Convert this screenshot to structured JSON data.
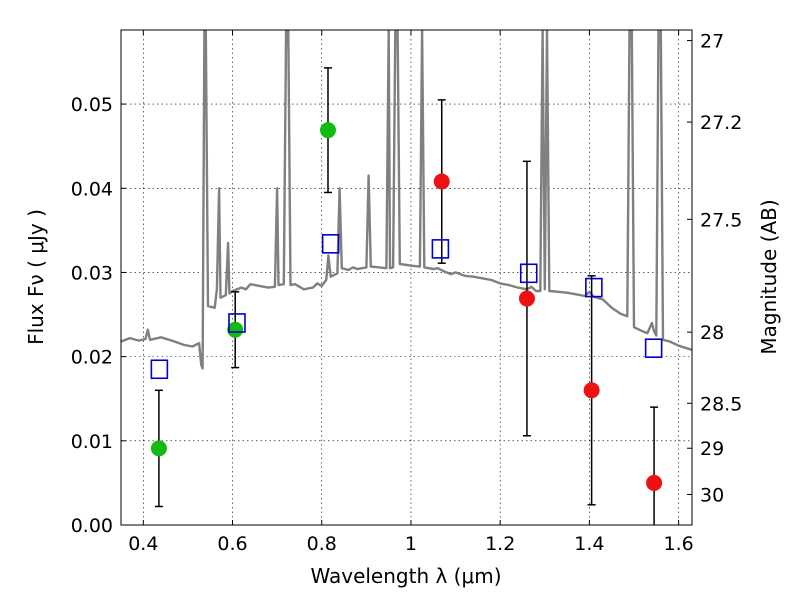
{
  "chart_data": {
    "type": "scatter",
    "xlabel": "Wavelength  λ (μm)",
    "ylabel": "Flux  Fν  ( μJy )",
    "y2label": "Magnitude (AB)",
    "xlim": [
      0.35,
      1.63
    ],
    "ylim": [
      0.0,
      0.0588
    ],
    "grid": true,
    "x_ticks": [
      0.4,
      0.6,
      0.8,
      1.0,
      1.2,
      1.4,
      1.6
    ],
    "x_tick_labels": [
      "0.4",
      "0.6",
      "0.8",
      "1",
      "1.2",
      "1.4",
      "1.6"
    ],
    "y_ticks": [
      0.0,
      0.01,
      0.02,
      0.03,
      0.04,
      0.05
    ],
    "y_tick_labels": [
      "0.00",
      "0.01",
      "0.02",
      "0.03",
      "0.04",
      "0.05"
    ],
    "magnitude_ticks": [
      {
        "mag": 27,
        "label": "27"
      },
      {
        "mag": 27.2,
        "label": "27.2"
      },
      {
        "mag": 27.5,
        "label": "27.5"
      },
      {
        "mag": 28,
        "label": "28"
      },
      {
        "mag": 28.5,
        "label": "28.5"
      },
      {
        "mag": 29,
        "label": "29"
      },
      {
        "mag": 30,
        "label": "30"
      }
    ],
    "series": [
      {
        "marker": "circle",
        "color": "#11bb11",
        "points": [
          {
            "x": 0.435,
            "y": 0.0091,
            "err": 0.0069
          },
          {
            "x": 0.606,
            "y": 0.0232,
            "err": 0.0045
          },
          {
            "x": 0.814,
            "y": 0.0469,
            "err": 0.0074
          }
        ]
      },
      {
        "marker": "circle",
        "color": "#ee1111",
        "points": [
          {
            "x": 1.069,
            "y": 0.0408,
            "err": 0.0097
          },
          {
            "x": 1.26,
            "y": 0.0269,
            "err": 0.0163
          },
          {
            "x": 1.405,
            "y": 0.016,
            "err": 0.0136
          },
          {
            "x": 1.545,
            "y": 0.005,
            "err": 0.009
          }
        ]
      },
      {
        "marker": "open-square",
        "color": "#0000cc",
        "points": [
          {
            "x": 0.436,
            "y": 0.0185
          },
          {
            "x": 0.61,
            "y": 0.024
          },
          {
            "x": 0.82,
            "y": 0.0334
          },
          {
            "x": 1.066,
            "y": 0.0328
          },
          {
            "x": 1.264,
            "y": 0.0299
          },
          {
            "x": 1.41,
            "y": 0.0282
          },
          {
            "x": 1.544,
            "y": 0.021
          }
        ]
      }
    ],
    "model_spectrum": {
      "color": "#808080",
      "points": [
        [
          0.35,
          0.0218
        ],
        [
          0.37,
          0.0222
        ],
        [
          0.39,
          0.0219
        ],
        [
          0.405,
          0.0221
        ],
        [
          0.41,
          0.0232
        ],
        [
          0.415,
          0.022
        ],
        [
          0.44,
          0.0223
        ],
        [
          0.47,
          0.0218
        ],
        [
          0.49,
          0.0214
        ],
        [
          0.51,
          0.0212
        ],
        [
          0.525,
          0.0216
        ],
        [
          0.53,
          0.019
        ],
        [
          0.533,
          0.0186
        ],
        [
          0.537,
          0.0588
        ],
        [
          0.54,
          0.0588
        ],
        [
          0.545,
          0.026
        ],
        [
          0.56,
          0.0258
        ],
        [
          0.565,
          0.028
        ],
        [
          0.57,
          0.04
        ],
        [
          0.573,
          0.027
        ],
        [
          0.585,
          0.0273
        ],
        [
          0.59,
          0.0335
        ],
        [
          0.593,
          0.0275
        ],
        [
          0.6,
          0.0278
        ],
        [
          0.62,
          0.0282
        ],
        [
          0.63,
          0.028
        ],
        [
          0.64,
          0.0286
        ],
        [
          0.66,
          0.0284
        ],
        [
          0.68,
          0.0282
        ],
        [
          0.695,
          0.0283
        ],
        [
          0.7,
          0.04
        ],
        [
          0.703,
          0.0285
        ],
        [
          0.715,
          0.0286
        ],
        [
          0.72,
          0.0588
        ],
        [
          0.725,
          0.0588
        ],
        [
          0.73,
          0.0285
        ],
        [
          0.74,
          0.0286
        ],
        [
          0.76,
          0.028
        ],
        [
          0.78,
          0.0282
        ],
        [
          0.79,
          0.0287
        ],
        [
          0.8,
          0.0284
        ],
        [
          0.81,
          0.0291
        ],
        [
          0.815,
          0.032
        ],
        [
          0.82,
          0.0295
        ],
        [
          0.835,
          0.0299
        ],
        [
          0.84,
          0.04
        ],
        [
          0.845,
          0.0305
        ],
        [
          0.86,
          0.0303
        ],
        [
          0.87,
          0.0306
        ],
        [
          0.88,
          0.0304
        ],
        [
          0.89,
          0.0305
        ],
        [
          0.9,
          0.0306
        ],
        [
          0.905,
          0.0415
        ],
        [
          0.91,
          0.0307
        ],
        [
          0.93,
          0.0306
        ],
        [
          0.945,
          0.0305
        ],
        [
          0.95,
          0.0588
        ],
        [
          0.953,
          0.0305
        ],
        [
          0.96,
          0.0306
        ],
        [
          0.965,
          0.0588
        ],
        [
          0.97,
          0.0588
        ],
        [
          0.975,
          0.031
        ],
        [
          0.99,
          0.0309
        ],
        [
          1.0,
          0.0308
        ],
        [
          1.02,
          0.0307
        ],
        [
          1.025,
          0.0588
        ],
        [
          1.03,
          0.0306
        ],
        [
          1.04,
          0.0305
        ],
        [
          1.05,
          0.0304
        ],
        [
          1.06,
          0.0305
        ],
        [
          1.075,
          0.0301
        ],
        [
          1.09,
          0.0298
        ],
        [
          1.1,
          0.03
        ],
        [
          1.12,
          0.0296
        ],
        [
          1.14,
          0.0295
        ],
        [
          1.16,
          0.0293
        ],
        [
          1.18,
          0.0291
        ],
        [
          1.2,
          0.0287
        ],
        [
          1.22,
          0.0285
        ],
        [
          1.24,
          0.0282
        ],
        [
          1.26,
          0.028
        ],
        [
          1.27,
          0.0283
        ],
        [
          1.28,
          0.0278
        ],
        [
          1.29,
          0.0278
        ],
        [
          1.295,
          0.0588
        ],
        [
          1.3,
          0.028
        ],
        [
          1.305,
          0.0588
        ],
        [
          1.31,
          0.0278
        ],
        [
          1.33,
          0.0277
        ],
        [
          1.35,
          0.0276
        ],
        [
          1.37,
          0.0274
        ],
        [
          1.39,
          0.0272
        ],
        [
          1.4,
          0.0277
        ],
        [
          1.41,
          0.0271
        ],
        [
          1.43,
          0.0268
        ],
        [
          1.45,
          0.0258
        ],
        [
          1.47,
          0.0251
        ],
        [
          1.485,
          0.0248
        ],
        [
          1.49,
          0.0588
        ],
        [
          1.495,
          0.0588
        ],
        [
          1.5,
          0.0235
        ],
        [
          1.52,
          0.023
        ],
        [
          1.53,
          0.0228
        ],
        [
          1.54,
          0.024
        ],
        [
          1.545,
          0.023
        ],
        [
          1.55,
          0.0225
        ],
        [
          1.555,
          0.0588
        ],
        [
          1.56,
          0.0588
        ],
        [
          1.565,
          0.022
        ],
        [
          1.58,
          0.0218
        ],
        [
          1.6,
          0.0213
        ],
        [
          1.63,
          0.0208
        ]
      ]
    }
  }
}
